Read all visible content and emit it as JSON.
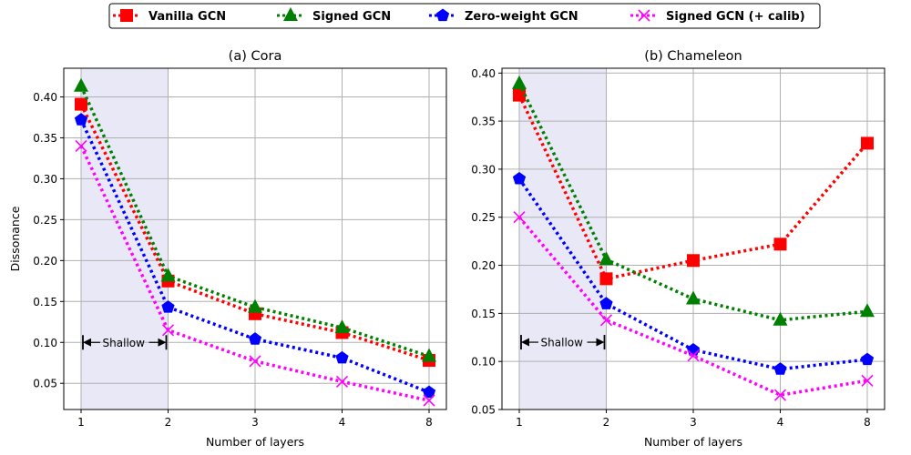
{
  "legend": {
    "entries": [
      {
        "label": "Vanilla GCN",
        "color": "#ff0000",
        "marker": "square"
      },
      {
        "label": "Signed GCN",
        "color": "#008000",
        "marker": "triangle"
      },
      {
        "label": "Zero-weight GCN",
        "color": "#0000ff",
        "marker": "pentagon"
      },
      {
        "label": "Signed GCN (+ calib)",
        "color": "#ff00ff",
        "marker": "x"
      }
    ]
  },
  "chart_data": [
    {
      "type": "line",
      "title": "(a) Cora",
      "xlabel": "Number of layers",
      "ylabel": "Dissonance",
      "categories": [
        "1",
        "2",
        "3",
        "4",
        "8"
      ],
      "ylim": [
        0.018,
        0.435
      ],
      "yticks": [
        0.05,
        0.1,
        0.15,
        0.2,
        0.25,
        0.3,
        0.35,
        0.4
      ],
      "ytick_labels": [
        "0.05",
        "0.10",
        "0.15",
        "0.20",
        "0.25",
        "0.30",
        "0.35",
        "0.40"
      ],
      "shaded_region": {
        "from": "1",
        "to": "2",
        "label": "Shallow",
        "arrow_y": 0.1
      },
      "series": [
        {
          "name": "Vanilla GCN",
          "values": [
            0.391,
            0.175,
            0.135,
            0.112,
            0.078
          ]
        },
        {
          "name": "Signed GCN",
          "values": [
            0.413,
            0.181,
            0.143,
            0.118,
            0.083
          ]
        },
        {
          "name": "Zero-weight GCN",
          "values": [
            0.372,
            0.143,
            0.104,
            0.081,
            0.039
          ]
        },
        {
          "name": "Signed GCN (+ calib)",
          "values": [
            0.34,
            0.115,
            0.077,
            0.052,
            0.029
          ]
        }
      ]
    },
    {
      "type": "line",
      "title": "(b) Chameleon",
      "xlabel": "Number of layers",
      "ylabel": "",
      "categories": [
        "1",
        "2",
        "3",
        "4",
        "8"
      ],
      "ylim": [
        0.05,
        0.405
      ],
      "yticks": [
        0.05,
        0.1,
        0.15,
        0.2,
        0.25,
        0.3,
        0.35,
        0.4
      ],
      "ytick_labels": [
        "0.05",
        "0.10",
        "0.15",
        "0.20",
        "0.25",
        "0.30",
        "0.35",
        "0.40"
      ],
      "shaded_region": {
        "from": "1",
        "to": "2",
        "label": "Shallow",
        "arrow_y": 0.12
      },
      "series": [
        {
          "name": "Vanilla GCN",
          "values": [
            0.377,
            0.186,
            0.205,
            0.222,
            0.327
          ]
        },
        {
          "name": "Signed GCN",
          "values": [
            0.389,
            0.206,
            0.165,
            0.143,
            0.152
          ]
        },
        {
          "name": "Zero-weight GCN",
          "values": [
            0.29,
            0.16,
            0.112,
            0.092,
            0.102
          ]
        },
        {
          "name": "Signed GCN (+ calib)",
          "values": [
            0.25,
            0.143,
            0.106,
            0.065,
            0.08
          ]
        }
      ]
    }
  ]
}
